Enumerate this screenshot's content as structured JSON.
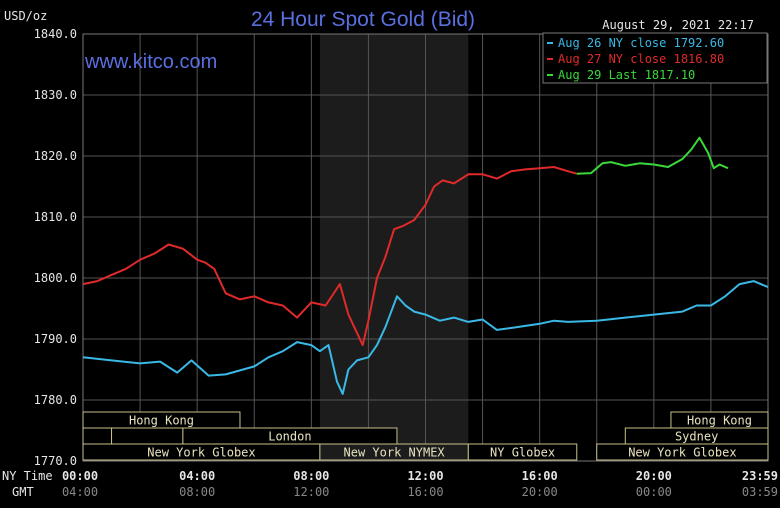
{
  "chart_data": {
    "type": "line",
    "title": "24 Hour Spot Gold (Bid)",
    "watermark": "www.kitco.com",
    "timestamp": "August 29, 2021 22:17",
    "ylabel": "USD/oz",
    "ylim": [
      1770,
      1840
    ],
    "yticks": [
      "1840.0",
      "1830.0",
      "1820.0",
      "1810.0",
      "1800.0",
      "1790.0",
      "1780.0",
      "1770.0"
    ],
    "xlim": [
      0,
      24
    ],
    "x_row_labels": [
      "NY Time",
      "GMT"
    ],
    "xticks_ny": [
      "00:00",
      "04:00",
      "08:00",
      "12:00",
      "16:00",
      "20:00",
      "23:59"
    ],
    "xticks_gmt": [
      "04:00",
      "08:00",
      "12:00",
      "16:00",
      "20:00",
      "00:00",
      "03:59"
    ],
    "grid": true,
    "legend_placement": "top-right",
    "highlight_hours": [
      8.3,
      13.5
    ],
    "colors": {
      "background": "#000000",
      "grid": "#555555",
      "title": "#5a6fe0",
      "highlight": "#1c1c1c",
      "session_border": "#c8bf8a",
      "session_text": "#e8e2c0"
    },
    "series": [
      {
        "name": "Aug 26 NY close 1792.60",
        "color": "#3ab8e6",
        "x": [
          0,
          1,
          2,
          2.7,
          3.3,
          3.8,
          4.4,
          5,
          6,
          6.5,
          7,
          7.5,
          8,
          8.3,
          8.6,
          8.9,
          9.1,
          9.3,
          9.6,
          10,
          10.3,
          10.6,
          11,
          11.3,
          11.6,
          12,
          12.5,
          13,
          13.5,
          14,
          14.5,
          15,
          16,
          16.5,
          17,
          18,
          19,
          20,
          21,
          21.5,
          22,
          22.5,
          23,
          23.5,
          24
        ],
        "y": [
          1787,
          1786.5,
          1786,
          1786.3,
          1784.5,
          1786.5,
          1784,
          1784.2,
          1785.5,
          1787,
          1788,
          1789.5,
          1789,
          1788,
          1789,
          1783,
          1781,
          1785,
          1786.5,
          1787,
          1789,
          1792,
          1797,
          1795.5,
          1794.5,
          1794,
          1793,
          1793.5,
          1792.8,
          1793.2,
          1791.5,
          1791.8,
          1792.5,
          1793,
          1792.8,
          1793,
          1793.5,
          1794,
          1794.5,
          1795.5,
          1795.5,
          1797,
          1799,
          1799.5,
          1798.5
        ]
      },
      {
        "name": "Aug 27 NY close 1816.80",
        "color": "#e02a2a",
        "x": [
          0,
          0.5,
          1,
          1.5,
          2,
          2.5,
          3,
          3.5,
          4,
          4.3,
          4.6,
          5,
          5.5,
          6,
          6.5,
          7,
          7.5,
          8,
          8.5,
          9,
          9.3,
          9.6,
          9.8,
          10,
          10.3,
          10.6,
          10.9,
          11.2,
          11.6,
          12,
          12.3,
          12.6,
          13,
          13.5,
          14,
          14.5,
          15,
          15.5,
          16,
          16.5,
          17,
          17.3
        ],
        "y": [
          1799,
          1799.5,
          1800.5,
          1801.5,
          1803,
          1804,
          1805.5,
          1804.8,
          1803,
          1802.5,
          1801.5,
          1797.5,
          1796.5,
          1797,
          1796,
          1795.5,
          1793.5,
          1796,
          1795.5,
          1799,
          1794,
          1791,
          1789,
          1793,
          1800,
          1803.5,
          1808,
          1808.5,
          1809.5,
          1812,
          1815,
          1816,
          1815.5,
          1817,
          1817,
          1816.3,
          1817.5,
          1817.8,
          1818,
          1818.2,
          1817.5,
          1817.1
        ]
      },
      {
        "name": "Aug 29 Last 1817.10",
        "color": "#3ad83a",
        "x": [
          17.3,
          17.8,
          18.2,
          18.5,
          19,
          19.5,
          20,
          20.5,
          21,
          21.3,
          21.6,
          21.9,
          22.1,
          22.3,
          22.6
        ],
        "y": [
          1817.1,
          1817.2,
          1818.8,
          1819,
          1818.4,
          1818.8,
          1818.6,
          1818.2,
          1819.5,
          1821,
          1823,
          1820.5,
          1818,
          1818.6,
          1818
        ]
      }
    ],
    "sessions": [
      {
        "row": 0,
        "start": 0,
        "end": 5.5,
        "label": "Hong Kong"
      },
      {
        "row": 0,
        "start": 20.6,
        "end": 24,
        "label": "Hong Kong"
      },
      {
        "row": 1,
        "start": 0,
        "end": 1,
        "label": ""
      },
      {
        "row": 1,
        "start": 1,
        "end": 3.5,
        "label": ""
      },
      {
        "row": 1,
        "start": 3.5,
        "end": 11,
        "label": "London"
      },
      {
        "row": 1,
        "start": 19,
        "end": 24,
        "label": "Sydney"
      },
      {
        "row": 2,
        "start": 0,
        "end": 8.3,
        "label": "New York Globex"
      },
      {
        "row": 2,
        "start": 8.3,
        "end": 13.5,
        "label": "New York NYMEX"
      },
      {
        "row": 2,
        "start": 13.5,
        "end": 17.3,
        "label": "NY Globex"
      },
      {
        "row": 2,
        "start": 18,
        "end": 24,
        "label": "New York Globex"
      }
    ]
  }
}
